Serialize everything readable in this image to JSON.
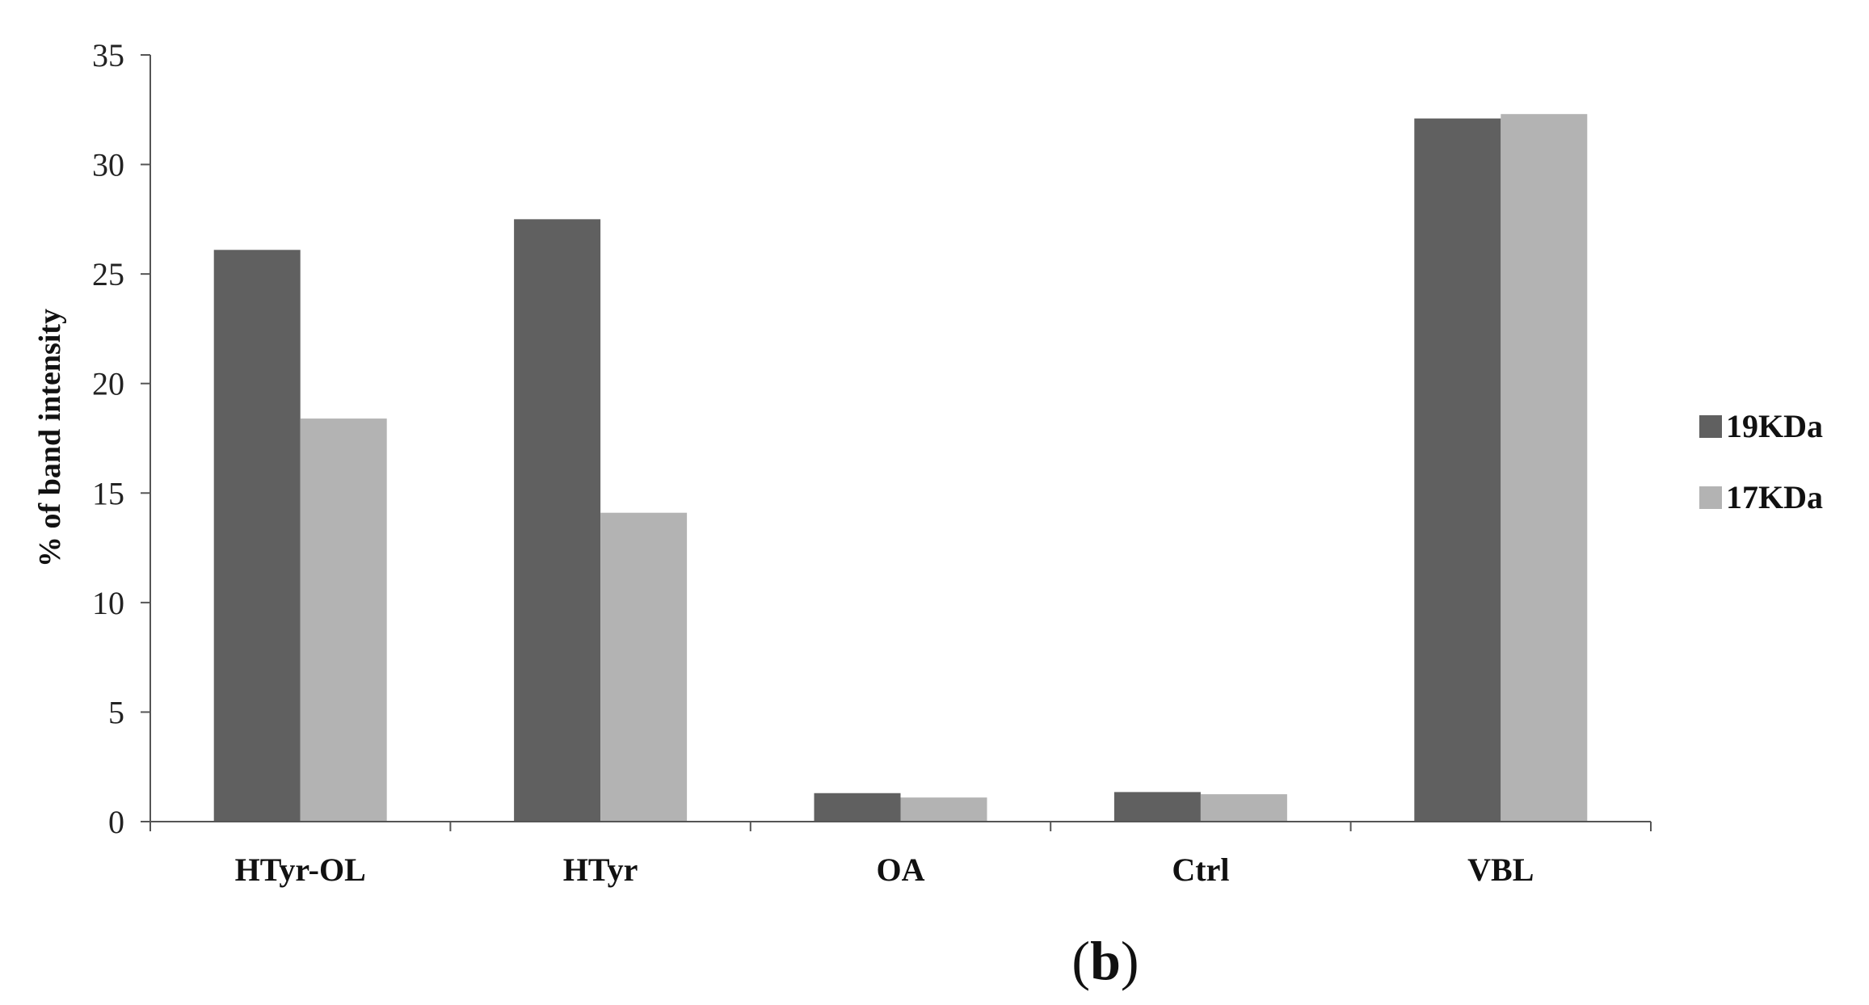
{
  "chart_data": {
    "type": "bar",
    "categories": [
      "HTyr-OL",
      "HTyr",
      "OA",
      "Ctrl",
      "VBL"
    ],
    "series": [
      {
        "name": "19KDa",
        "color": "#606060",
        "values": [
          26.1,
          27.5,
          1.3,
          1.35,
          32.1
        ]
      },
      {
        "name": "17KDa",
        "color": "#b3b3b3",
        "values": [
          18.4,
          14.1,
          1.1,
          1.25,
          32.3
        ]
      }
    ],
    "title": "",
    "xlabel": "",
    "ylabel": "% of band intensity",
    "ylim": [
      0,
      35
    ],
    "yticks": [
      0,
      5,
      10,
      15,
      20,
      25,
      30,
      35
    ],
    "grid": false,
    "legend_position": "right"
  },
  "panel_label": {
    "open": "(",
    "letter": "b",
    "close": ")"
  }
}
